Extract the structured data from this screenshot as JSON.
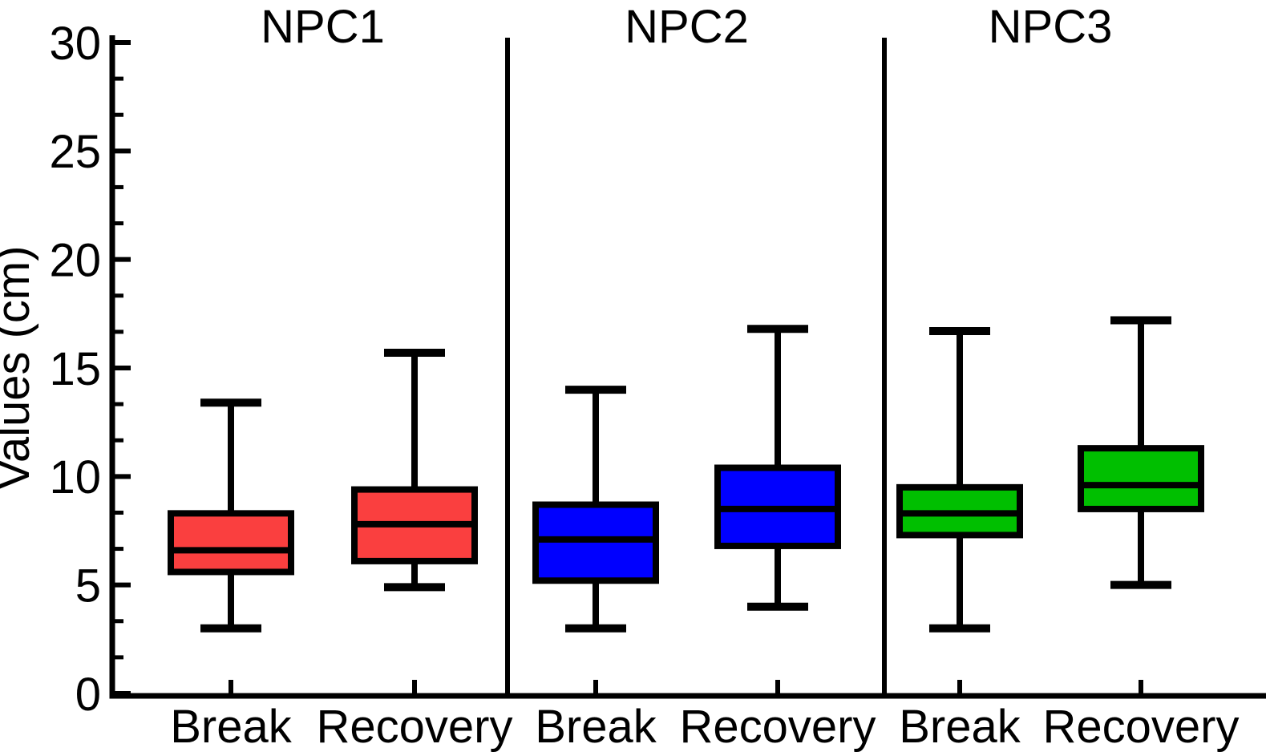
{
  "figure": {
    "background": "#ffffff",
    "axis_color": "#000000"
  },
  "chart_data": {
    "type": "boxplot",
    "title": "",
    "ylabel": "Values (cm)",
    "xlabel": "",
    "ylim": [
      0,
      30
    ],
    "yticks": [
      0,
      5,
      10,
      15,
      20,
      25,
      30
    ],
    "ytick_labels": [
      "0",
      "5",
      "10",
      "15",
      "20",
      "25",
      "30"
    ],
    "minor_ticks_per_major": 2,
    "grid": "off",
    "legend": "none",
    "panels": [
      {
        "title": "NPC1",
        "color": "#FA3F3F",
        "boxes": [
          {
            "label": "Break",
            "whisker_min": 3.0,
            "q1": 5.6,
            "median": 6.6,
            "q3": 8.3,
            "whisker_max": 13.4
          },
          {
            "label": "Recovery",
            "whisker_min": 4.9,
            "q1": 6.1,
            "median": 7.8,
            "q3": 9.4,
            "whisker_max": 15.7
          }
        ]
      },
      {
        "title": "NPC2",
        "color": "#0000FF",
        "boxes": [
          {
            "label": "Break",
            "whisker_min": 3.0,
            "q1": 5.2,
            "median": 7.1,
            "q3": 8.7,
            "whisker_max": 14.0
          },
          {
            "label": "Recovery",
            "whisker_min": 4.0,
            "q1": 6.8,
            "median": 8.5,
            "q3": 10.4,
            "whisker_max": 16.8
          }
        ]
      },
      {
        "title": "NPC3",
        "color": "#00BF00",
        "boxes": [
          {
            "label": "Break",
            "whisker_min": 3.0,
            "q1": 7.3,
            "median": 8.3,
            "q3": 9.5,
            "whisker_max": 16.7
          },
          {
            "label": "Recovery",
            "whisker_min": 5.0,
            "q1": 8.5,
            "median": 9.6,
            "q3": 11.3,
            "whisker_max": 17.2
          }
        ]
      }
    ]
  }
}
